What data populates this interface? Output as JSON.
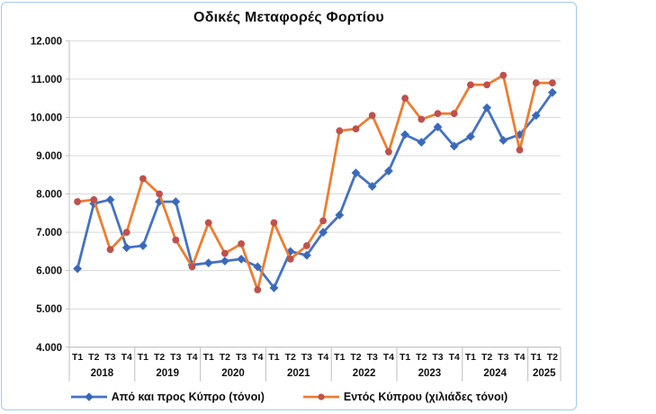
{
  "chart": {
    "title": "Οδικές Μεταφορές Φορτίου"
  },
  "chart_data": {
    "type": "line",
    "title": "Οδικές Μεταφορές Φορτίου",
    "ylim": [
      4000,
      12000
    ],
    "grid": true,
    "legend_position": "bottom",
    "y_ticks": [
      {
        "label": "12.000",
        "value": 12000
      },
      {
        "label": "11.000",
        "value": 11000
      },
      {
        "label": "10.000",
        "value": 10000
      },
      {
        "label": "9.000",
        "value": 9000
      },
      {
        "label": "8.000",
        "value": 8000
      },
      {
        "label": "7.000",
        "value": 7000
      },
      {
        "label": "6.000",
        "value": 6000
      },
      {
        "label": "5.000",
        "value": 5000
      },
      {
        "label": "4.000",
        "value": 4000
      }
    ],
    "x_years": [
      {
        "label": "2018",
        "quarters": [
          "Τ1",
          "Τ2",
          "Τ3",
          "Τ4"
        ]
      },
      {
        "label": "2019",
        "quarters": [
          "Τ1",
          "Τ2",
          "Τ3",
          "Τ4"
        ]
      },
      {
        "label": "2020",
        "quarters": [
          "Τ1",
          "Τ2",
          "Τ3",
          "Τ4"
        ]
      },
      {
        "label": "2021",
        "quarters": [
          "Τ1",
          "Τ2",
          "Τ3",
          "Τ4"
        ]
      },
      {
        "label": "2022",
        "quarters": [
          "Τ1",
          "Τ2",
          "Τ3",
          "Τ4"
        ]
      },
      {
        "label": "2023",
        "quarters": [
          "Τ1",
          "Τ2",
          "Τ3",
          "Τ4"
        ]
      },
      {
        "label": "2024",
        "quarters": [
          "Τ1",
          "Τ2",
          "Τ3",
          "Τ4"
        ]
      },
      {
        "label": "2025",
        "quarters": [
          "Τ1",
          "Τ2"
        ]
      }
    ],
    "series": [
      {
        "name": "Από και προς Κύπρο (τόνοι)",
        "color": "#4472c4",
        "marker": "diamond",
        "marker_color": "#3a67b8",
        "values": [
          6050,
          7750,
          7850,
          6600,
          6650,
          7800,
          7800,
          6150,
          6200,
          6250,
          6300,
          6100,
          5550,
          6500,
          6400,
          7000,
          7450,
          8550,
          8200,
          8600,
          9550,
          9350,
          9750,
          9250,
          9500,
          10250,
          9400,
          9550,
          10050,
          10650
        ]
      },
      {
        "name": "Εντός Κύπρου (χιλιάδες τόνοι)",
        "color": "#ed7d31",
        "marker": "circle",
        "marker_color": "#c0504d",
        "values": [
          7800,
          7850,
          6550,
          7000,
          8400,
          8000,
          6800,
          6100,
          7250,
          6450,
          6700,
          5500,
          7250,
          6300,
          6650,
          7300,
          9650,
          9700,
          10050,
          9100,
          10500,
          9950,
          10100,
          10100,
          10850,
          10850,
          11100,
          9150,
          10900,
          10900
        ]
      }
    ],
    "colors": {
      "gridline": "#d9d9d9",
      "axis": "#bfbfbf",
      "frame_border": "#a6c9ec",
      "text": "#111111"
    }
  }
}
